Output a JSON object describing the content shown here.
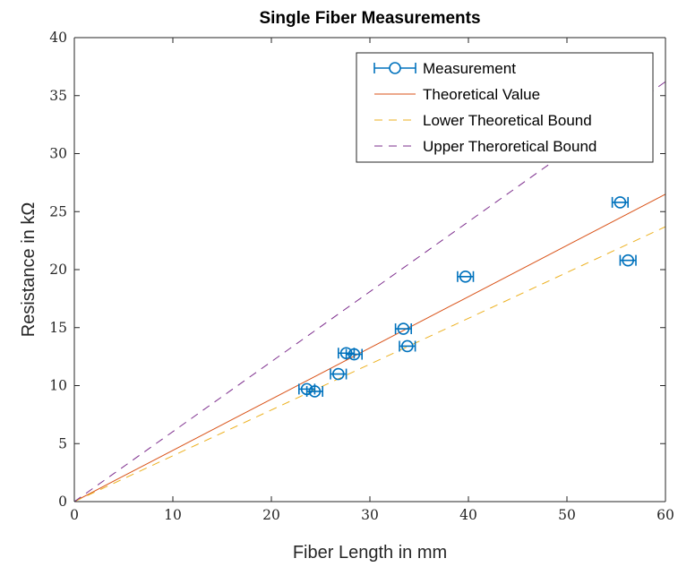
{
  "chart_data": {
    "type": "line",
    "title": "Single Fiber Measurements",
    "xlabel": "Fiber Length in mm",
    "ylabel": "Resistance in kΩ",
    "xlim": [
      0,
      60
    ],
    "ylim": [
      0,
      40
    ],
    "xticks": [
      0,
      10,
      20,
      30,
      40,
      50,
      60
    ],
    "yticks": [
      0,
      5,
      10,
      15,
      20,
      25,
      30,
      35,
      40
    ],
    "xtick_labels": [
      "0",
      "10",
      "20",
      "30",
      "40",
      "50",
      "60"
    ],
    "ytick_labels": [
      "0",
      "5",
      "10",
      "15",
      "20",
      "25",
      "30",
      "35",
      "40"
    ],
    "grid": false,
    "legend_position": "top-right",
    "series": [
      {
        "name": "Measurement",
        "kind": "errorbar",
        "color": "#0072BD",
        "marker": "circle",
        "points": [
          {
            "x": 23.6,
            "y": 9.7,
            "xerr": 0.8
          },
          {
            "x": 24.4,
            "y": 9.5,
            "xerr": 0.8
          },
          {
            "x": 26.8,
            "y": 11.0,
            "xerr": 0.8
          },
          {
            "x": 27.6,
            "y": 12.8,
            "xerr": 0.8
          },
          {
            "x": 28.4,
            "y": 12.7,
            "xerr": 0.8
          },
          {
            "x": 33.4,
            "y": 14.9,
            "xerr": 0.8
          },
          {
            "x": 33.8,
            "y": 13.4,
            "xerr": 0.8
          },
          {
            "x": 39.7,
            "y": 19.4,
            "xerr": 0.8
          },
          {
            "x": 55.4,
            "y": 25.8,
            "xerr": 0.8
          },
          {
            "x": 56.2,
            "y": 20.8,
            "xerr": 0.8
          }
        ]
      },
      {
        "name": "Theoretical Value",
        "kind": "line",
        "color": "#D95319",
        "dash": "solid",
        "x": [
          0,
          60
        ],
        "y": [
          0,
          26.5
        ]
      },
      {
        "name": "Lower Theoretical Bound",
        "kind": "line",
        "color": "#EDB120",
        "dash": "dashed",
        "x": [
          0,
          60
        ],
        "y": [
          0,
          23.7
        ]
      },
      {
        "name": "Upper Theroretical Bound",
        "kind": "line",
        "color": "#7E2F8E",
        "dash": "dashed",
        "x": [
          0,
          60
        ],
        "y": [
          0,
          36.2
        ]
      }
    ]
  }
}
